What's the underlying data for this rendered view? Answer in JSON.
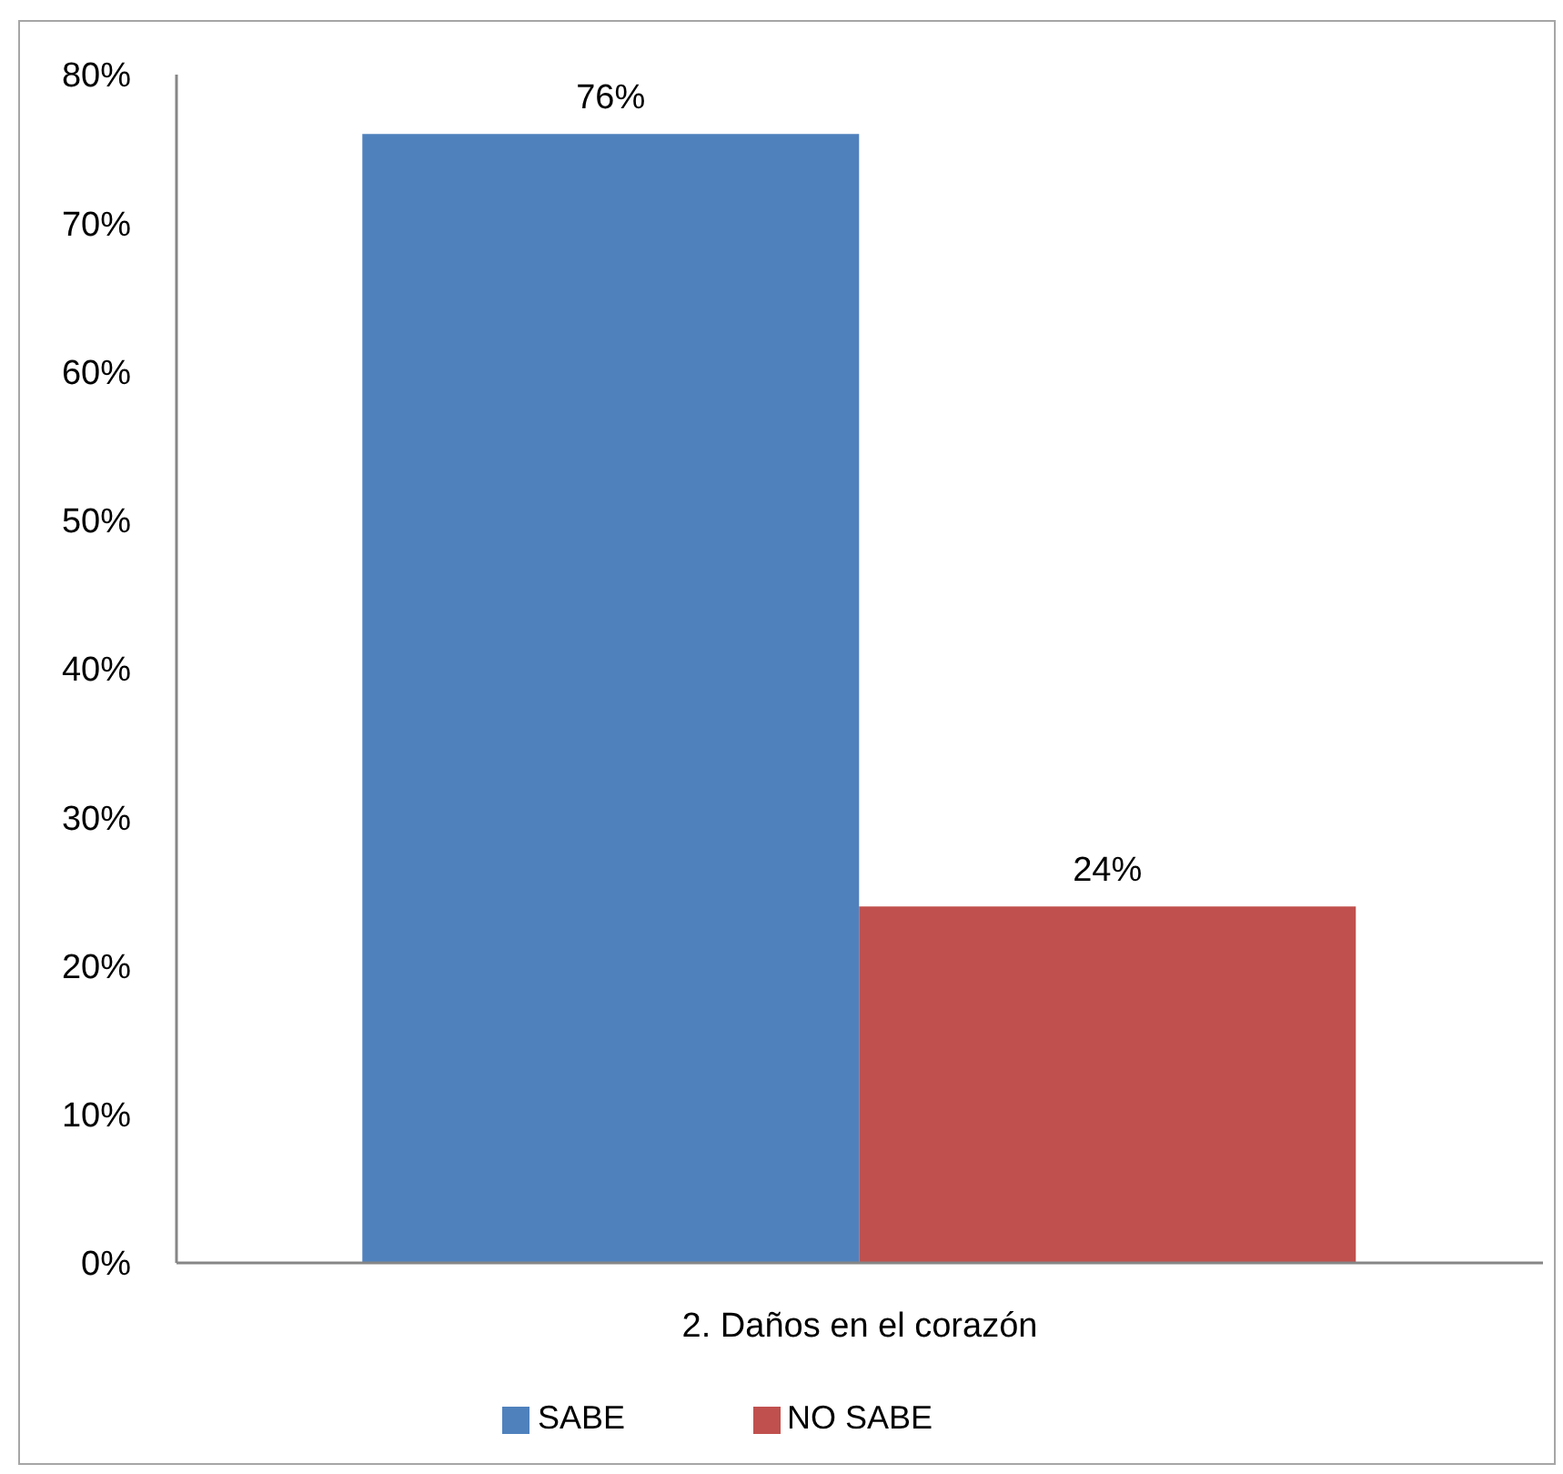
{
  "chart_data": {
    "type": "bar",
    "categories": [
      "2. Daños en el corazón"
    ],
    "series": [
      {
        "name": "SABE",
        "color": "#4f81bd",
        "values": [
          76
        ],
        "value_labels": [
          "76%"
        ]
      },
      {
        "name": "NO SABE",
        "color": "#c0504d",
        "values": [
          24
        ],
        "value_labels": [
          "24%"
        ]
      }
    ],
    "ylim": [
      0,
      80
    ],
    "yticks": [
      {
        "value": 0,
        "label": "0%"
      },
      {
        "value": 10,
        "label": "10%"
      },
      {
        "value": 20,
        "label": "20%"
      },
      {
        "value": 30,
        "label": "30%"
      },
      {
        "value": 40,
        "label": "40%"
      },
      {
        "value": 50,
        "label": "50%"
      },
      {
        "value": 60,
        "label": "60%"
      },
      {
        "value": 70,
        "label": "70%"
      },
      {
        "value": 80,
        "label": "80%"
      }
    ],
    "legend": "bottom"
  }
}
